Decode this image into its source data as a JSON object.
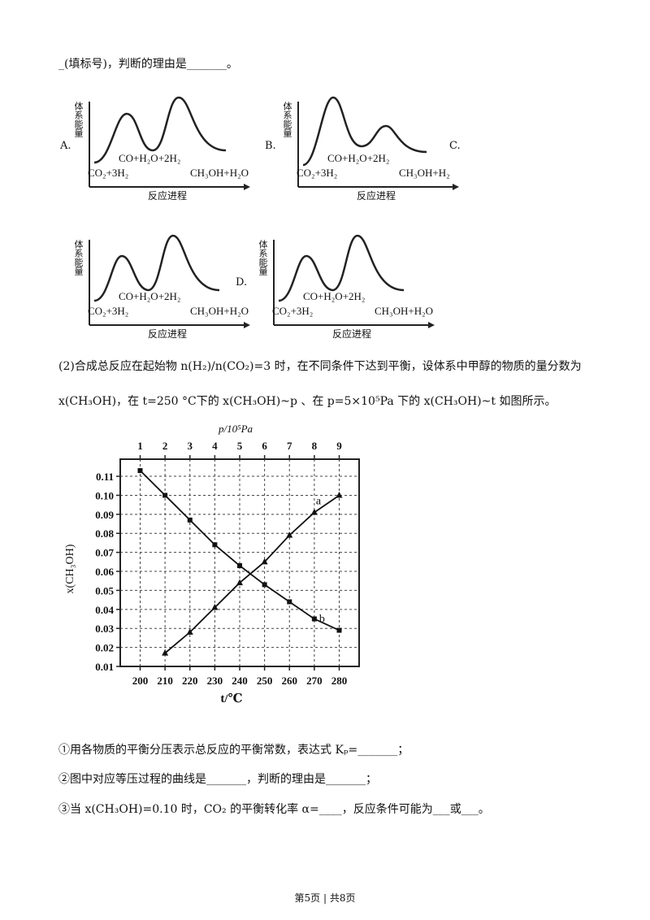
{
  "intro": "_(填标号)，判断的理由是_______。",
  "options": [
    {
      "label": "A.",
      "y_axis": "体系能量",
      "x_axis": "反应进程",
      "start": "CO₂+3H₂",
      "middle": "CO+H₂O+2H₂",
      "end": "CH₃OH+H₂O"
    },
    {
      "label": "B.",
      "y_axis": "体系能量",
      "x_axis": "反应进程",
      "start": "CO₂+3H₂",
      "middle": "CO+H₂O+2H₂",
      "end": "CH₃OH+H₂"
    },
    {
      "label": "C.",
      "y_axis": "体系能量",
      "x_axis": "反应进程",
      "start": "CO₂+3H₂",
      "middle": "CO+H₂O+2H₂",
      "end": "CH₃OH+H₂O"
    },
    {
      "label": "D.",
      "y_axis": "体系能量",
      "x_axis": "反应进程",
      "start": "CO₂+3H₂",
      "middle": "CO+H₂O+2H₂",
      "end": "CH₃OH+H₂O"
    }
  ],
  "question2": [
    "(2)合成总反应在起始物 n(H₂)/n(CO₂)=3 时，在不同条件下达到平衡，设体系中甲醇的物质的量分数为",
    "x(CH₃OH)，在 t=250 °C下的 x(CH₃OH)~p 、在 p=5×10⁵Pa 下的 x(CH₃OH)~t 如图所示。"
  ],
  "chart_data": {
    "type": "line",
    "x_label": "t/℃",
    "x2_label": "p/10⁵Pa",
    "y_label": "x(CH₃OH)",
    "xlim": [
      192,
      288
    ],
    "xticks": [
      200,
      210,
      220,
      230,
      240,
      250,
      260,
      270,
      280
    ],
    "x2lim": [
      0.2,
      9.8
    ],
    "x2ticks": [
      1,
      2,
      3,
      4,
      5,
      6,
      7,
      8,
      9
    ],
    "ylim": [
      0.01,
      0.119
    ],
    "yticks": [
      0.01,
      0.02,
      0.03,
      0.04,
      0.05,
      0.06,
      0.07,
      0.08,
      0.09,
      {
        "value": 0.1,
        "label": "0.10"
      },
      0.11
    ],
    "grid": true,
    "color": "#111",
    "series": [
      {
        "name": "a",
        "axis": "x2",
        "marker": "triangle",
        "x": [
          2,
          3,
          4,
          5,
          6,
          7,
          8,
          9
        ],
        "values": [
          0.017,
          0.028,
          0.041,
          0.054,
          0.065,
          0.079,
          0.091,
          0.1
        ]
      },
      {
        "name": "b",
        "marker": "square",
        "x": [
          200,
          210,
          220,
          230,
          240,
          250,
          260,
          270,
          280
        ],
        "values": [
          0.113,
          0.1,
          0.087,
          0.074,
          0.063,
          0.053,
          0.044,
          0.035,
          0.029
        ]
      }
    ]
  },
  "subquestions": [
    "①用各物质的平衡分压表示总反应的平衡常数，表达式 Kₚ=_______；",
    "②图中对应等压过程的曲线是_______，判断的理由是_______；",
    "③当 x(CH₃OH)=0.10 时，CO₂ 的平衡转化率 α=____，反应条件可能为___或___。"
  ],
  "footer": "第5页 | 共8页"
}
